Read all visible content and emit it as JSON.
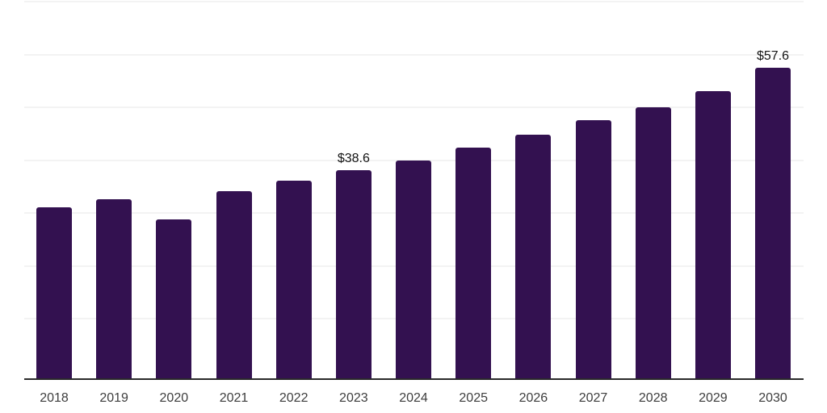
{
  "chart_data": {
    "type": "bar",
    "categories": [
      "2018",
      "2019",
      "2020",
      "2021",
      "2022",
      "2023",
      "2024",
      "2025",
      "2026",
      "2027",
      "2028",
      "2029",
      "2030"
    ],
    "values": [
      31.8,
      33.3,
      29.6,
      34.8,
      36.7,
      38.6,
      40.4,
      42.8,
      45.2,
      47.9,
      50.4,
      53.3,
      57.6
    ],
    "title": "",
    "xlabel": "",
    "ylabel": "",
    "ylim": [
      0,
      70
    ],
    "grid": "horizontal-only",
    "legend": "none",
    "data_labels": [
      {
        "category": "2023",
        "index": 5,
        "text": "$38.6"
      },
      {
        "category": "2030",
        "index": 12,
        "text": "$57.6"
      }
    ],
    "colors": {
      "bar": "#331150",
      "axis_line": "#2a2a2a",
      "gridline": "#f3f3f3",
      "tick_label": "#3d3d3d",
      "data_label": "#141414",
      "background": "#ffffff"
    }
  }
}
